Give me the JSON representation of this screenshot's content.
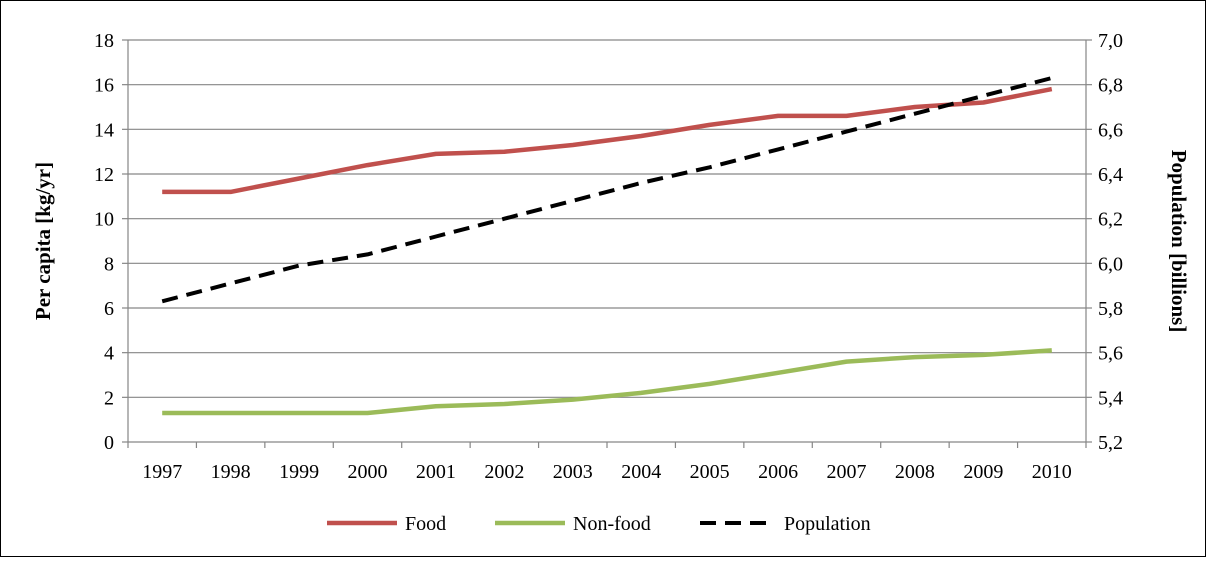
{
  "chart_data": {
    "type": "line",
    "categories": [
      "1997",
      "1998",
      "1999",
      "2000",
      "2001",
      "2002",
      "2003",
      "2004",
      "2005",
      "2006",
      "2007",
      "2008",
      "2009",
      "2010"
    ],
    "ylabel_left": "Per capita [kg/yr]",
    "ylabel_right": "Population [billions]",
    "ylim_left": [
      0,
      18
    ],
    "ylim_right": [
      5.2,
      7.0
    ],
    "yticks_left": [
      "0",
      "2",
      "4",
      "6",
      "8",
      "10",
      "12",
      "14",
      "16",
      "18"
    ],
    "yticks_right": [
      "5,2",
      "5,4",
      "5,6",
      "5,8",
      "6,0",
      "6,2",
      "6,4",
      "6,6",
      "6,8",
      "7,0"
    ],
    "grid": true,
    "legend_position": "bottom",
    "series": [
      {
        "name": "Food",
        "axis": "left",
        "color": "#c0504d",
        "style": "solid",
        "values": [
          11.2,
          11.2,
          11.8,
          12.4,
          12.9,
          13.0,
          13.3,
          13.7,
          14.2,
          14.6,
          14.6,
          15.0,
          15.2,
          15.8
        ]
      },
      {
        "name": "Non-food",
        "axis": "left",
        "color": "#9bbb59",
        "style": "solid",
        "values": [
          1.3,
          1.3,
          1.3,
          1.3,
          1.6,
          1.7,
          1.9,
          2.2,
          2.6,
          3.1,
          3.6,
          3.8,
          3.9,
          4.1
        ]
      },
      {
        "name": "Population",
        "axis": "right",
        "color": "#000000",
        "style": "dashed",
        "values": [
          5.83,
          5.91,
          5.99,
          6.04,
          6.12,
          6.2,
          6.28,
          6.36,
          6.43,
          6.51,
          6.59,
          6.67,
          6.75,
          6.83
        ]
      }
    ]
  }
}
